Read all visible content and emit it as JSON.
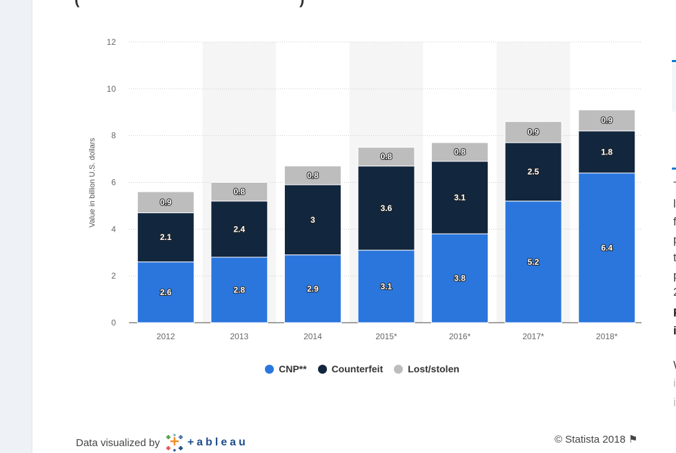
{
  "title_fragment": {
    "left": "(",
    "right": ")"
  },
  "chart_data": {
    "type": "bar",
    "stacked": true,
    "categories": [
      "2012",
      "2013",
      "2014",
      "2015*",
      "2016*",
      "2017*",
      "2018*"
    ],
    "series": [
      {
        "name": "CNP**",
        "color": "#2a76dd",
        "values": [
          2.6,
          2.8,
          2.9,
          3.1,
          3.8,
          5.2,
          6.4
        ]
      },
      {
        "name": "Counterfeit",
        "color": "#12263d",
        "values": [
          2.1,
          2.4,
          3,
          3.6,
          3.1,
          2.5,
          1.8
        ]
      },
      {
        "name": "Lost/stolen",
        "color": "#bdbdbd",
        "values": [
          0.9,
          0.8,
          0.8,
          0.8,
          0.8,
          0.9,
          0.9
        ]
      }
    ],
    "ylabel": "Value in billion U.S. dollars",
    "xlabel": "",
    "ylim": [
      0,
      12
    ],
    "yticks": [
      0,
      2,
      4,
      6,
      8,
      10,
      12
    ],
    "grid": true,
    "legend": "bottom"
  },
  "footer": {
    "data_visualized": "Data visualized by",
    "tableau": "+ableau",
    "copyright": "© Statista 2018",
    "flag_icon": "flag-icon"
  },
  "right_panel": {
    "fragments": [
      "T",
      "l",
      "f",
      "p",
      "t",
      "p",
      "2",
      "F",
      "i",
      "W",
      "i",
      "i"
    ]
  }
}
